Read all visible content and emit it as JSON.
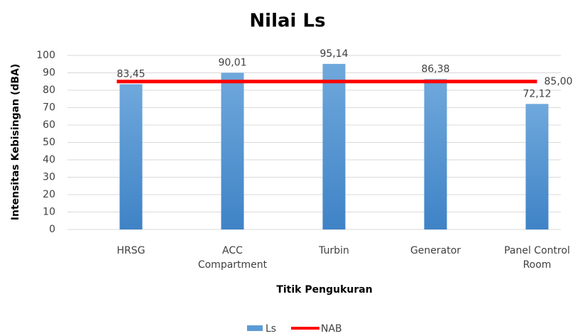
{
  "chart_data": {
    "type": "bar",
    "title": "Nilai Ls",
    "x_label": "Titik Pengukuran",
    "y_label": "Intensitas Kebisingan (dBA)",
    "categories": [
      "HRSG",
      "ACC Compartment",
      "Turbin",
      "Generator",
      "Panel Control Room"
    ],
    "series": [
      {
        "name": "Ls",
        "type": "bar",
        "color": "#5b9bd5",
        "values": [
          83.45,
          90.01,
          95.14,
          86.38,
          72.12
        ],
        "value_labels": [
          "83,45",
          "90,01",
          "95,14",
          "86,38",
          "72,12"
        ]
      },
      {
        "name": "NAB",
        "type": "line",
        "color": "#ff0000",
        "values": [
          85,
          85,
          85,
          85,
          85
        ],
        "value_labels": [
          null,
          null,
          null,
          null,
          "85,00"
        ]
      }
    ],
    "ylim": [
      0,
      100
    ],
    "yticks": [
      0,
      10,
      20,
      30,
      40,
      50,
      60,
      70,
      80,
      90,
      100
    ],
    "grid": true,
    "legend": "bottom"
  }
}
